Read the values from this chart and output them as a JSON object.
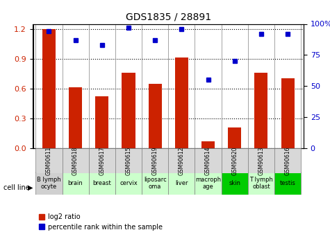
{
  "title": "GDS1835 / 28891",
  "samples": [
    "GSM90611",
    "GSM90618",
    "GSM90617",
    "GSM90615",
    "GSM90619",
    "GSM90612",
    "GSM90614",
    "GSM90620",
    "GSM90613",
    "GSM90616"
  ],
  "cell_lines": [
    "B lymph\nocyte",
    "brain",
    "breast",
    "cervix",
    "liposarc\noma",
    "liver",
    "macroph\nage",
    "skin",
    "T lymph\noblast",
    "testis"
  ],
  "cell_bg": [
    "#d0d0d0",
    "#ccffcc",
    "#ccffcc",
    "#ccffcc",
    "#ccffcc",
    "#ccffcc",
    "#ccffcc",
    "#00cc00",
    "#ccffcc",
    "#00cc00"
  ],
  "log2_ratio": [
    1.2,
    0.61,
    0.52,
    0.76,
    0.65,
    0.91,
    0.07,
    0.21,
    0.76,
    0.7
  ],
  "percentile_rank": [
    94,
    87,
    83,
    97,
    87,
    96,
    55,
    70,
    92,
    92
  ],
  "bar_color": "#cc2200",
  "dot_color": "#0000cc",
  "ylim_left": [
    0,
    1.25
  ],
  "ylim_right": [
    0,
    100
  ],
  "yticks_left": [
    0,
    0.3,
    0.6,
    0.9,
    1.2
  ],
  "yticks_right": [
    0,
    25,
    50,
    75,
    100
  ],
  "ylabel_left_color": "#cc2200",
  "ylabel_right_color": "#0000cc",
  "legend_log2": "log2 ratio",
  "legend_pct": "percentile rank within the sample",
  "cell_line_label": "cell line"
}
